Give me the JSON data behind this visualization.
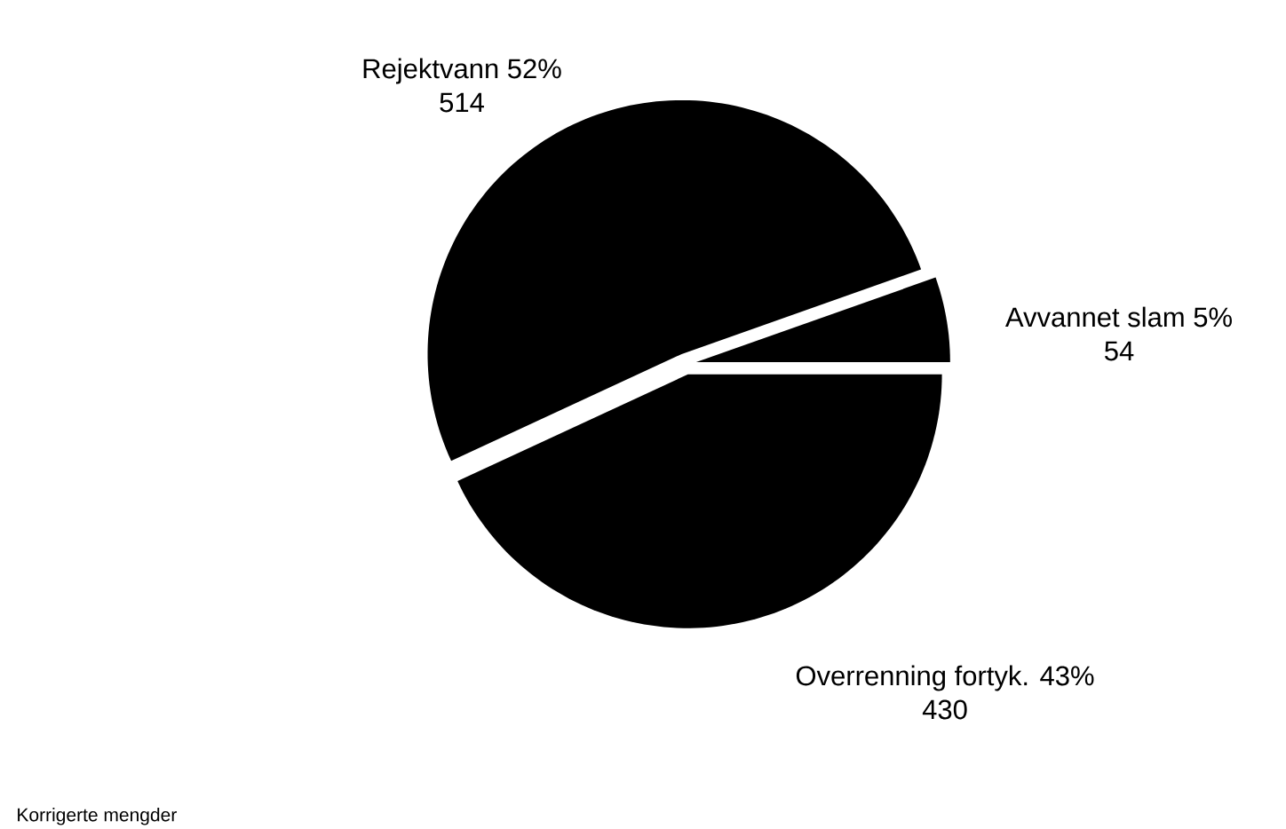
{
  "chart_data": {
    "type": "pie",
    "categories": [
      "Avvannet slam 5%",
      "Rejektvann 52%",
      "Overrenning fortyk. 43%"
    ],
    "values": [
      54,
      514,
      430
    ],
    "colors": [
      "#000000",
      "#000000",
      "#000000"
    ],
    "data_labels": true,
    "annotations": [
      "Korrigerte mengder"
    ]
  }
}
